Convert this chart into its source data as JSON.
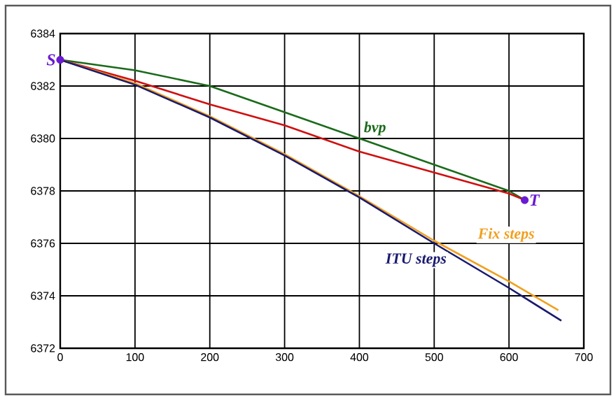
{
  "chart_data": {
    "type": "line",
    "xlim": [
      0,
      700
    ],
    "ylim": [
      6372,
      6384
    ],
    "xticks": [
      0,
      100,
      200,
      300,
      400,
      500,
      600,
      700
    ],
    "yticks": [
      6372,
      6374,
      6376,
      6378,
      6380,
      6382,
      6384
    ],
    "grid": true,
    "legend": false,
    "line_style": "solid",
    "series": [
      {
        "name": "bvp",
        "color": "#1a6b1a",
        "x": [
          0,
          100,
          200,
          300,
          400,
          500,
          600,
          621
        ],
        "values": [
          6383,
          6382.6,
          6382.0,
          6381.0,
          6380.0,
          6379.0,
          6378.0,
          6377.65
        ]
      },
      {
        "color": "#d01010",
        "x": [
          0,
          100,
          200,
          300,
          400,
          500,
          600,
          621
        ],
        "values": [
          6383,
          6382.2,
          6381.3,
          6380.5,
          6379.5,
          6378.7,
          6377.9,
          6377.65
        ]
      },
      {
        "name": "Fix steps",
        "color": "#f0a020",
        "x": [
          0,
          100,
          200,
          300,
          400,
          500,
          600,
          666
        ],
        "values": [
          6383,
          6382.1,
          6380.85,
          6379.4,
          6377.8,
          6376.1,
          6374.55,
          6373.45
        ]
      },
      {
        "name": "ITU steps",
        "color": "#1a1a6e",
        "x": [
          0,
          100,
          200,
          300,
          400,
          500,
          600,
          670
        ],
        "values": [
          6383,
          6382.05,
          6380.8,
          6379.35,
          6377.75,
          6376.0,
          6374.3,
          6373.05
        ]
      },
      {
        "type": "scatter",
        "marker": "circle",
        "color": "#6a1ad0",
        "x": [
          0,
          621
        ],
        "values": [
          6383,
          6377.65
        ]
      }
    ],
    "annotations": [
      {
        "text": "S",
        "x": 0,
        "y": 6383
      },
      {
        "text": "T",
        "x": 621,
        "y": 6377.65
      }
    ]
  }
}
